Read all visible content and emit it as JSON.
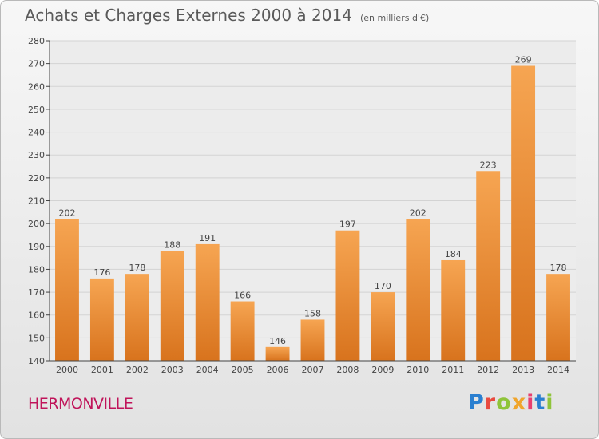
{
  "header": {
    "title": "Achats et Charges Externes 2000 à 2014",
    "subtitle": "(en milliers d'€)"
  },
  "commune": "HERMONVILLE",
  "brand": {
    "letters": [
      "P",
      "r",
      "o",
      "x",
      "i",
      "t",
      "i"
    ],
    "colors": [
      "#2a7fd0",
      "#e94a3f",
      "#8fc43a",
      "#f0a52c",
      "#e83f6f",
      "#2a7fd0",
      "#8fc43a"
    ]
  },
  "chart_data": {
    "type": "bar",
    "categories": [
      "2000",
      "2001",
      "2002",
      "2003",
      "2004",
      "2005",
      "2006",
      "2007",
      "2008",
      "2009",
      "2010",
      "2011",
      "2012",
      "2013",
      "2014"
    ],
    "values": [
      202,
      176,
      178,
      188,
      191,
      166,
      146,
      158,
      197,
      170,
      202,
      184,
      223,
      269,
      178
    ],
    "ylim": [
      140,
      280
    ],
    "yticks": [
      140,
      150,
      160,
      170,
      180,
      190,
      200,
      210,
      220,
      230,
      240,
      250,
      260,
      270,
      280
    ],
    "bar_color": "#f0963c",
    "grid": true
  }
}
